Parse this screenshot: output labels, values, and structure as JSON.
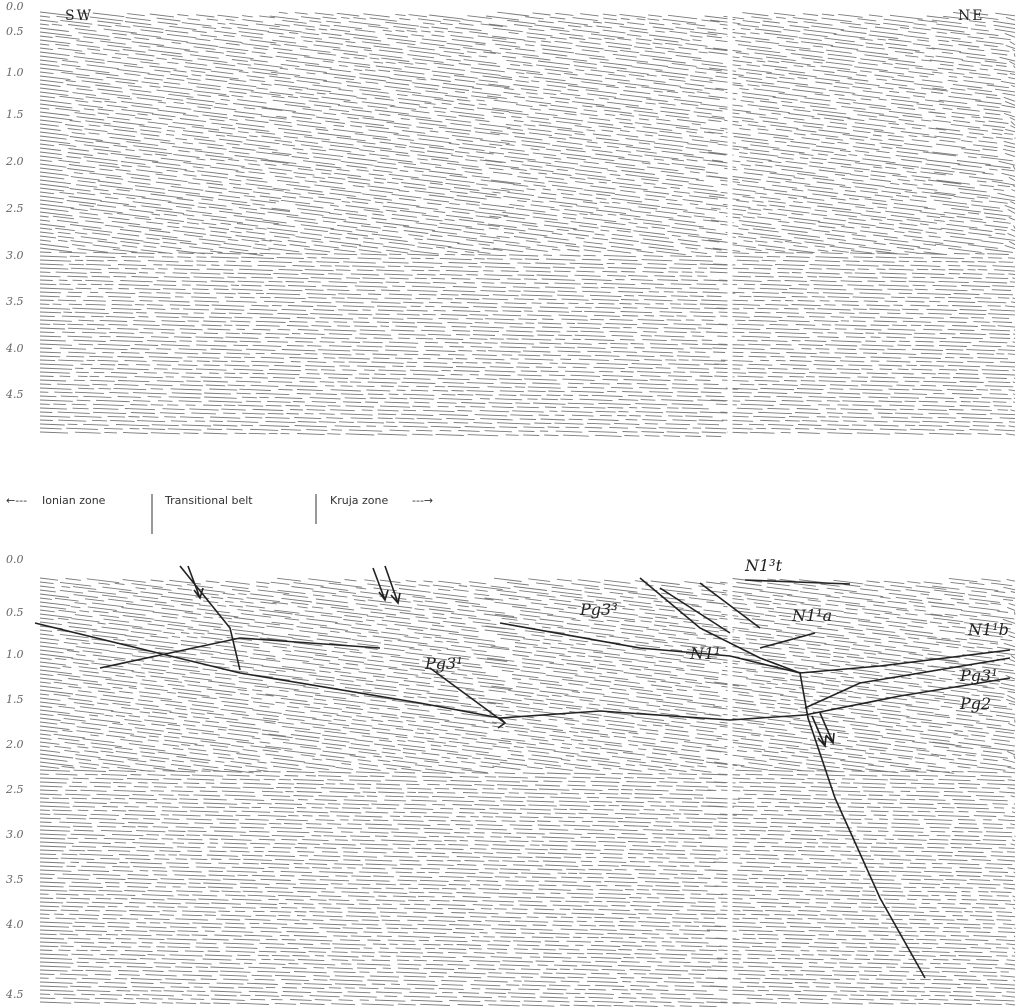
{
  "top_panel": {
    "left_direction": "SW",
    "right_direction": "NE",
    "ticks": [
      "0.0",
      "0.5",
      "1.0",
      "1.5",
      "2.0",
      "2.5",
      "3.0",
      "3.5",
      "4.0",
      "4.5"
    ]
  },
  "zone_bar": {
    "left_arrow": "←---",
    "ionian": "Ionian zone",
    "transitional": "Transitional belt",
    "kruja": "Kruja zone",
    "right_arrow": "---→"
  },
  "bottom_panel": {
    "ticks": [
      "0.0",
      "0.5",
      "1.0",
      "1.5",
      "2.0",
      "2.5",
      "3.0",
      "3.5",
      "4.0",
      "4.5"
    ],
    "labels": {
      "n1t": "N1³t",
      "n1a_right": "N1¹a",
      "n1b": "N1¹b",
      "pg3_left": "Pg3¹",
      "pg3_center": "Pg3³",
      "n1_center": "N1¹",
      "pg3_right": "Pg3¹",
      "pg2_right": "Pg2"
    }
  },
  "colors": {
    "ink": "#222222",
    "noise": "#7a7a7a",
    "paper": "#ffffff"
  }
}
